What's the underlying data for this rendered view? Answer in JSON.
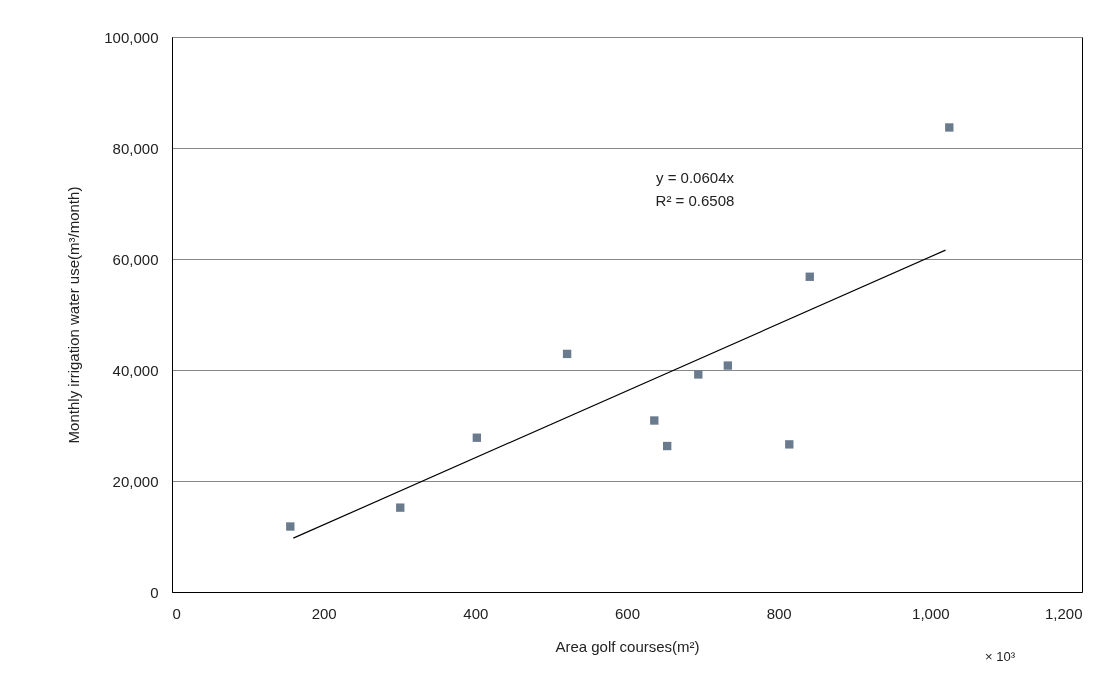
{
  "chart_data": {
    "type": "scatter",
    "xlabel": "Area golf courses(m²)",
    "ylabel": "Monthly irrigation water use(m³/month)",
    "annotations": [
      "y = 0.0604x",
      "R² = 0.6508",
      "× 10³"
    ],
    "x": [
      156,
      301,
      402,
      521,
      636,
      653,
      694,
      733,
      814,
      841,
      1025
    ],
    "series": [
      {
        "color": "#6b7b8e",
        "marker": "square",
        "values": [
          11800,
          15200,
          27800,
          42900,
          30900,
          26300,
          39200,
          40800,
          26600,
          56800,
          83700
        ]
      },
      {
        "type": "line",
        "color": "#000000",
        "line_style": "solid",
        "marker": "none",
        "x": [
          160,
          1020
        ],
        "values": [
          9700,
          61600
        ]
      }
    ],
    "xlim": [
      0,
      1200
    ],
    "xticks": [
      0,
      200,
      400,
      600,
      800,
      {
        "value": 1000,
        "label": "1,000"
      },
      {
        "value": 1200,
        "label": "1,200"
      }
    ],
    "ylim": [
      0,
      100000
    ],
    "yticks": [
      0,
      {
        "value": 20000,
        "label": "20,000"
      },
      {
        "value": 40000,
        "label": "40,000"
      },
      {
        "value": 60000,
        "label": "60,000"
      },
      {
        "value": 80000,
        "label": "80,000"
      },
      {
        "value": 100000,
        "label": "100,000"
      }
    ],
    "grid": "y",
    "legend": false
  }
}
